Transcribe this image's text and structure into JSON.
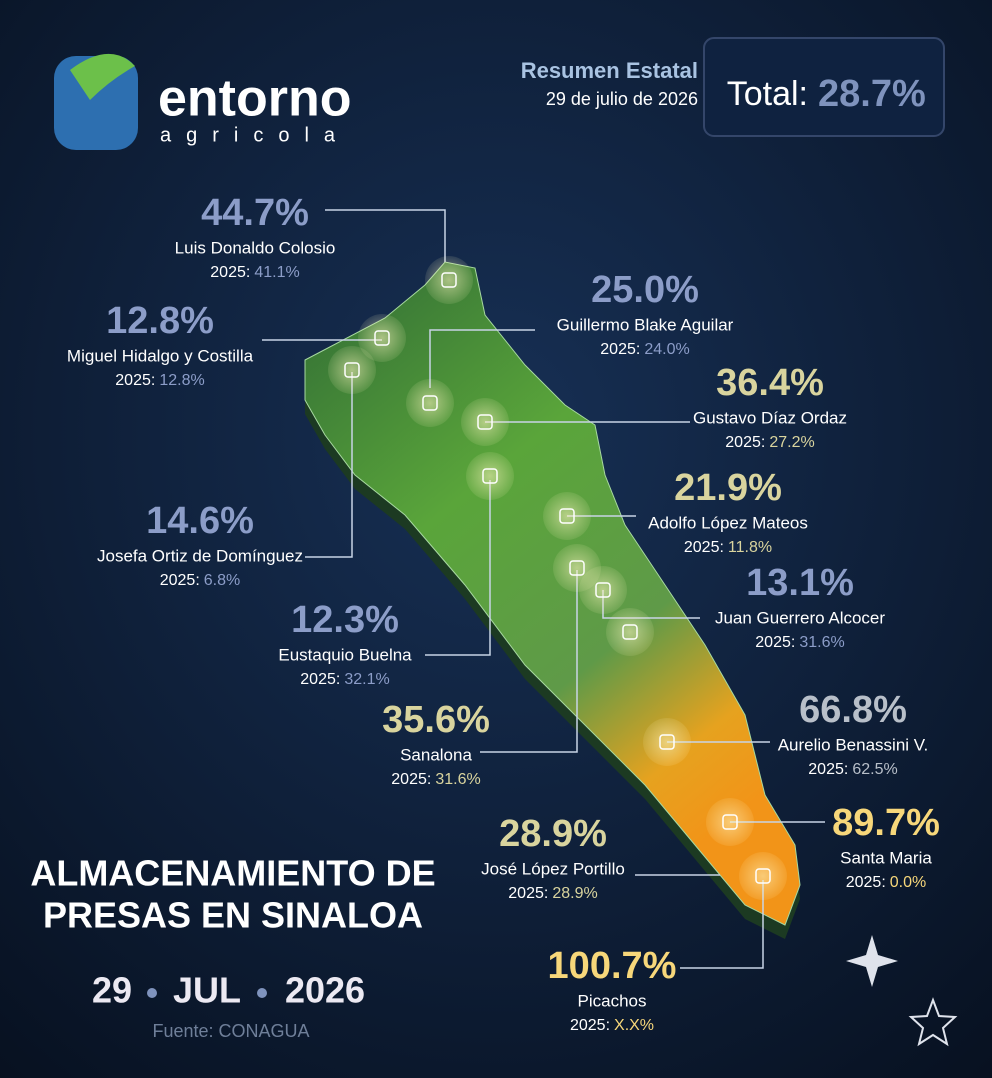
{
  "header": {
    "brand": "entorno",
    "brand_sub": "agricola",
    "summary_title": "Resumen Estatal",
    "summary_date": "29 de julio de 2026",
    "total_label": "Total:",
    "total_value": "28.7%"
  },
  "title": {
    "line1": "ALMACENAMIENTO DE",
    "line2": "PRESAS EN SINALOA",
    "day": "29",
    "month": "JUL",
    "year": "2026",
    "source": "Fuente: CONAGUA"
  },
  "dams": [
    {
      "name": "Luis Donaldo Colosio",
      "value": "44.7%",
      "prev_label": "2025:",
      "prev": "41.1%",
      "color": "#8c9dc8"
    },
    {
      "name": "Miguel Hidalgo y Costilla",
      "value": "12.8%",
      "prev_label": "2025:",
      "prev": "12.8%",
      "color": "#8c9dc8"
    },
    {
      "name": "Guillermo Blake Aguilar",
      "value": "25.0%",
      "prev_label": "2025:",
      "prev": "24.0%",
      "color": "#8c9dc8"
    },
    {
      "name": "Gustavo Díaz Ordaz",
      "value": "36.4%",
      "prev_label": "2025:",
      "prev": "27.2%",
      "color": "#d9d49e"
    },
    {
      "name": "Adolfo López Mateos",
      "value": "21.9%",
      "prev_label": "2025:",
      "prev": "11.8%",
      "color": "#d9d49e"
    },
    {
      "name": "Josefa Ortiz de Domínguez",
      "value": "14.6%",
      "prev_label": "2025:",
      "prev": "6.8%",
      "color": "#8c9dc8"
    },
    {
      "name": "Juan Guerrero Alcocer",
      "value": "13.1%",
      "prev_label": "2025:",
      "prev": "31.6%",
      "color": "#8c9dc8"
    },
    {
      "name": "Eustaquio Buelna",
      "value": "12.3%",
      "prev_label": "2025:",
      "prev": "32.1%",
      "color": "#8c9dc8"
    },
    {
      "name": "Sanalona",
      "value": "35.6%",
      "prev_label": "2025:",
      "prev": "31.6%",
      "color": "#d9d49e"
    },
    {
      "name": "Aurelio Benassini V.",
      "value": "66.8%",
      "prev_label": "2025:",
      "prev": "62.5%",
      "color": "#b8bfc9"
    },
    {
      "name": "José López Portillo",
      "value": "28.9%",
      "prev_label": "2025:",
      "prev": "28.9%",
      "color": "#d9d49e"
    },
    {
      "name": "Santa Maria",
      "value": "89.7%",
      "prev_label": "2025:",
      "prev": "0.0%",
      "color": "#f7d77a"
    },
    {
      "name": "Picachos",
      "value": "100.7%",
      "prev_label": "2025:",
      "prev": "X.X%",
      "color": "#f7d77a"
    }
  ]
}
